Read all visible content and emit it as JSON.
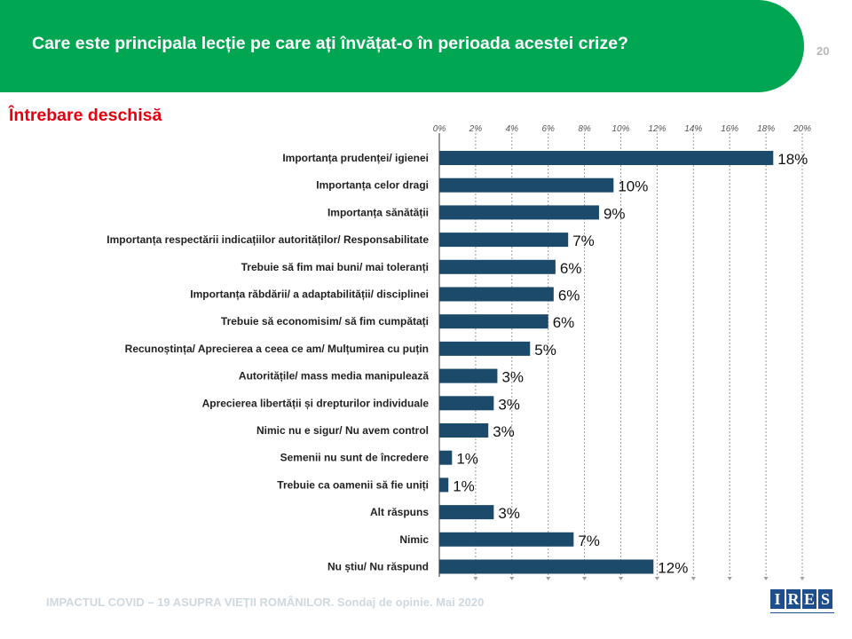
{
  "header": {
    "title": "Care este principala lecție pe care ați învățat-o în perioada acestei crize?",
    "page_number": "20"
  },
  "subtitle": "Întrebare deschisă",
  "footer": {
    "text": "IMPACTUL COVID – 19 ASUPRA VIEȚII ROMÂNILOR. Sondaj de opinie. Mai 2020"
  },
  "logo": {
    "letters": [
      "I",
      "R",
      "E",
      "S"
    ],
    "color": "#1f4e8c"
  },
  "colors": {
    "header_bg": "#00a651",
    "bar": "#1b4a6b",
    "subtitle": "#e3000f"
  },
  "chart_data": {
    "type": "bar",
    "orientation": "horizontal",
    "title": "",
    "xlabel": "",
    "ylabel": "",
    "xlim": [
      0,
      20
    ],
    "x_ticks": [
      "0%",
      "2%",
      "4%",
      "6%",
      "8%",
      "10%",
      "12%",
      "14%",
      "16%",
      "18%",
      "20%"
    ],
    "axis_position": "top",
    "grid": true,
    "categories": [
      "Importanța prudenței/ igienei",
      "Importanța celor dragi",
      "Importanța sănătății",
      "Importanța respectării indicațiilor autorităților/ Responsabilitate",
      "Trebuie să fim mai buni/ mai toleranți",
      "Importanța răbdării/ a adaptabilității/ disciplinei",
      "Trebuie să economisim/ să fim cumpătați",
      "Recunoștința/ Aprecierea a ceea ce am/ Mulțumirea cu puțin",
      "Autoritățile/ mass media manipulează",
      "Aprecierea libertății și drepturilor individuale",
      "Nimic nu e sigur/ Nu avem control",
      "Semenii nu sunt de încredere",
      "Trebuie ca oamenii să fie uniți",
      "Alt răspuns",
      "Nimic",
      "Nu știu/ Nu răspund"
    ],
    "values": [
      18.4,
      9.6,
      8.8,
      7.1,
      6.4,
      6.3,
      6.0,
      5.0,
      3.2,
      3.0,
      2.7,
      0.7,
      0.5,
      3.0,
      7.4,
      11.8
    ],
    "labels": [
      "18%",
      "10%",
      "9%",
      "7%",
      "6%",
      "6%",
      "6%",
      "5%",
      "3%",
      "3%",
      "3%",
      "1%",
      "1%",
      "3%",
      "7%",
      "12%"
    ]
  }
}
